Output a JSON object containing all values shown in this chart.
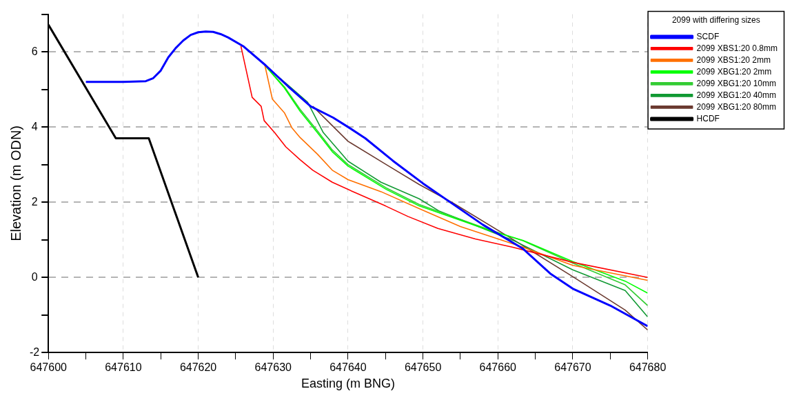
{
  "chart_data": {
    "type": "line",
    "xlabel": "Easting (m BNG)",
    "ylabel": "Elevation (m ODN)",
    "legend_title": "2099 with differing sizes",
    "xlim": [
      647600,
      647680
    ],
    "xticks": [
      647600,
      {
        "value": 647605,
        "label": null
      },
      647610,
      {
        "value": 647615,
        "label": null
      },
      647620,
      {
        "value": 647625,
        "label": null
      },
      647630,
      {
        "value": 647635,
        "label": null
      },
      647640,
      {
        "value": 647645,
        "label": null
      },
      647650,
      {
        "value": 647655,
        "label": null
      },
      647660,
      {
        "value": 647665,
        "label": null
      },
      647670,
      {
        "value": 647675,
        "label": null
      },
      647680
    ],
    "ylim": [
      -2,
      7
    ],
    "yticks": [
      -2,
      {
        "value": -1,
        "label": null
      },
      0,
      {
        "value": 1,
        "label": null
      },
      2,
      {
        "value": 3,
        "label": null
      },
      4,
      {
        "value": 5,
        "label": null
      },
      6,
      {
        "value": 7,
        "label": null
      }
    ],
    "grid": true,
    "legend": "top right",
    "marker": "none",
    "line_style": "solid",
    "series": [
      {
        "name": "SCDF",
        "color": "#0000ff",
        "x": [
          647605,
          647610,
          647613,
          647614,
          647615,
          647616,
          647617,
          647618,
          647619,
          647620,
          647621,
          647622,
          647623,
          647624,
          647626,
          647629,
          647632,
          647635,
          647638,
          647640,
          647642.3,
          647646,
          647650,
          647654,
          647658,
          647663.3,
          647667,
          647670,
          647675,
          647680
        ],
        "values": [
          5.2,
          5.2,
          5.22,
          5.3,
          5.5,
          5.85,
          6.1,
          6.3,
          6.45,
          6.52,
          6.54,
          6.53,
          6.47,
          6.38,
          6.15,
          5.64,
          5.08,
          4.55,
          4.25,
          4.0,
          3.7,
          3.1,
          2.5,
          1.95,
          1.4,
          0.77,
          0.1,
          -0.3,
          -0.75,
          -1.3
        ]
      },
      {
        "name": "2099 XBS1:20 0.8mm",
        "color": "#ff0000",
        "x": [
          647625.7,
          647627.2,
          647628.4,
          647628.8,
          647630.2,
          647631.7,
          647633.6,
          647635.3,
          647637.9,
          647641,
          647645,
          647648,
          647652,
          647657,
          647662,
          647670,
          647680
        ],
        "values": [
          6.15,
          4.79,
          4.55,
          4.17,
          3.85,
          3.47,
          3.13,
          2.85,
          2.53,
          2.25,
          1.9,
          1.62,
          1.3,
          1.02,
          0.8,
          0.4,
          0.0
        ]
      },
      {
        "name": "2099 XBS1:20 2mm",
        "color": "#ff7000",
        "x": [
          647628.9,
          647629.9,
          647631.5,
          647632.5,
          647633.6,
          647635.9,
          647637.9,
          647640,
          647644.4,
          647649.5,
          647655,
          647663.4,
          647670,
          647680
        ],
        "values": [
          5.64,
          4.74,
          4.38,
          3.98,
          3.72,
          3.28,
          2.85,
          2.6,
          2.28,
          1.83,
          1.35,
          0.8,
          0.32,
          -0.08
        ]
      },
      {
        "name": "2099 XBG1:20 2mm",
        "color": "#00ff00",
        "x": [
          647628.9,
          647631.5,
          647633.6,
          647635.9,
          647637.9,
          647640,
          647645.1,
          647649.5,
          647658.7,
          647663.4,
          647670,
          647677,
          647680
        ],
        "values": [
          5.64,
          5.04,
          4.42,
          3.85,
          3.34,
          2.96,
          2.34,
          1.9,
          1.26,
          0.98,
          0.42,
          -0.1,
          -0.42
        ]
      },
      {
        "name": "2099 XBG1:20 10mm",
        "color": "#33cc33",
        "x": [
          647628.9,
          647631.5,
          647633.6,
          647635.9,
          647637.9,
          647640,
          647645.1,
          647649.5,
          647658.7,
          647663.4,
          647670,
          647677,
          647680
        ],
        "values": [
          5.64,
          5.07,
          4.47,
          3.9,
          3.39,
          3.0,
          2.38,
          1.94,
          1.28,
          0.97,
          0.38,
          -0.2,
          -0.75
        ]
      },
      {
        "name": "2099 XBG1:20 40mm",
        "color": "#119933",
        "x": [
          647628.9,
          647632.2,
          647634.6,
          647636.7,
          647640,
          647644.4,
          647649.5,
          647652.1,
          647662.3,
          647670,
          647677,
          647680
        ],
        "values": [
          5.64,
          5.08,
          4.66,
          3.85,
          3.09,
          2.53,
          2.09,
          1.77,
          0.96,
          0.2,
          -0.35,
          -1.05
        ]
      },
      {
        "name": "2099 XBG1:20 80mm",
        "color": "#6b3a30",
        "x": [
          647635.3,
          647640,
          647645.1,
          647649.5,
          647654,
          647661.6,
          647670,
          647677,
          647680
        ],
        "values": [
          4.55,
          3.62,
          3.0,
          2.47,
          1.98,
          1.06,
          0.02,
          -0.87,
          -1.4
        ]
      },
      {
        "name": "HCDF",
        "color": "#000000",
        "x": [
          647600,
          647609,
          647613.4,
          647620
        ],
        "values": [
          6.72,
          3.7,
          3.7,
          0.0
        ]
      }
    ]
  }
}
